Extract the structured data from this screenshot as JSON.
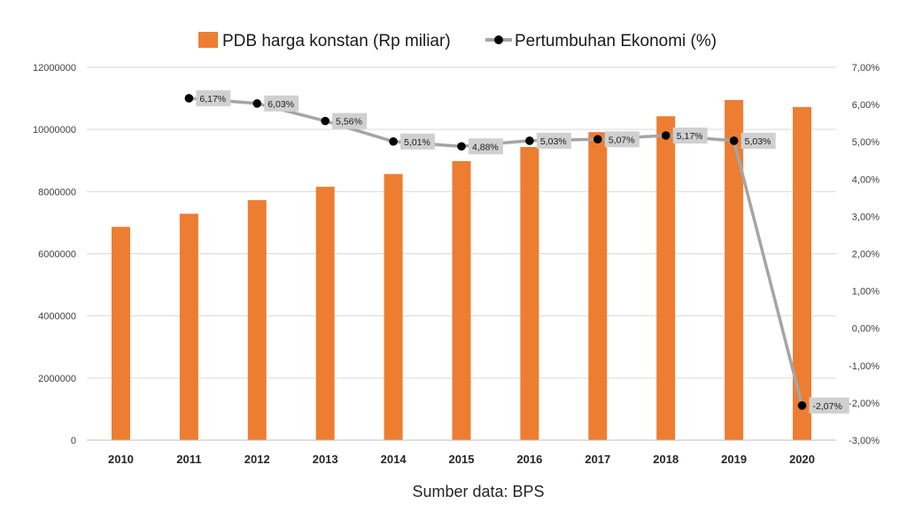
{
  "chart_data": {
    "type": "bar",
    "categories": [
      "2010",
      "2011",
      "2012",
      "2013",
      "2014",
      "2015",
      "2016",
      "2017",
      "2018",
      "2019",
      "2020"
    ],
    "series": [
      {
        "name": "PDB harga konstan (Rp miliar)",
        "type": "bar",
        "axis": "left",
        "color": "#ED7D31",
        "values": [
          6864133,
          7287635,
          7727083,
          8156498,
          8564867,
          8982517,
          9434613,
          9912928,
          10425316,
          10949155,
          10722443
        ]
      },
      {
        "name": "Pertumbuhan Ekonomi (%)",
        "type": "line",
        "axis": "right",
        "color": "#A5A5A5",
        "marker_color": "#000000",
        "values": [
          null,
          6.17,
          6.03,
          5.56,
          5.01,
          4.88,
          5.03,
          5.07,
          5.17,
          5.03,
          -2.07
        ],
        "data_labels": [
          "",
          "6,17%",
          "6,03%",
          "5,56%",
          "5,01%",
          "4,88%",
          "5,03%",
          "5,07%",
          "5,17%",
          "5,03%",
          "-2,07%"
        ]
      }
    ],
    "ylim_left": [
      0,
      12000000
    ],
    "yticks_left": [
      "0",
      "2000000",
      "4000000",
      "6000000",
      "8000000",
      "10000000",
      "12000000"
    ],
    "ylim_right": [
      -3,
      7
    ],
    "yticks_right": [
      "-3,00%",
      "-2,00%",
      "-1,00%",
      "0,00%",
      "1,00%",
      "2,00%",
      "3,00%",
      "4,00%",
      "5,00%",
      "6,00%",
      "7,00%"
    ],
    "grid": true,
    "legend_position": "top"
  },
  "source_note": "Sumber data: BPS"
}
